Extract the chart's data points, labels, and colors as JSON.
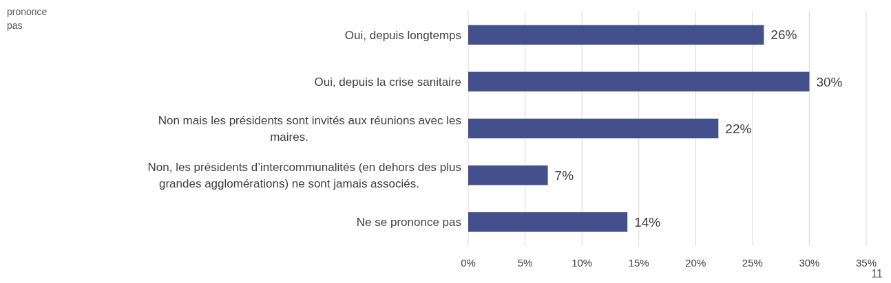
{
  "chart_data": {
    "type": "bar",
    "orientation": "horizontal",
    "categories": [
      "Oui, depuis longtemps",
      "Oui, depuis la crise sanitaire",
      "Non mais les présidents sont invités aux réunions avec les maires.",
      "Non, les présidents d’intercommunalités (en dehors des plus grandes agglomérations) ne sont jamais associés.",
      "Ne se prononce pas"
    ],
    "values": [
      26,
      30,
      22,
      7,
      14
    ],
    "value_labels": [
      "26%",
      "30%",
      "22%",
      "7%",
      "14%"
    ],
    "color": "#44508c",
    "xlim": [
      0,
      35
    ],
    "xticks": [
      {
        "value": 0,
        "label": "0%"
      },
      {
        "value": 5,
        "label": "5%"
      },
      {
        "value": 10,
        "label": "10%"
      },
      {
        "value": 15,
        "label": "15%"
      },
      {
        "value": 20,
        "label": "20%"
      },
      {
        "value": 25,
        "label": "25%"
      },
      {
        "value": 30,
        "label": "30%"
      },
      {
        "value": 35,
        "label": "35%"
      }
    ],
    "grid": "x",
    "annotations": [
      "prononce pas",
      "11"
    ]
  }
}
